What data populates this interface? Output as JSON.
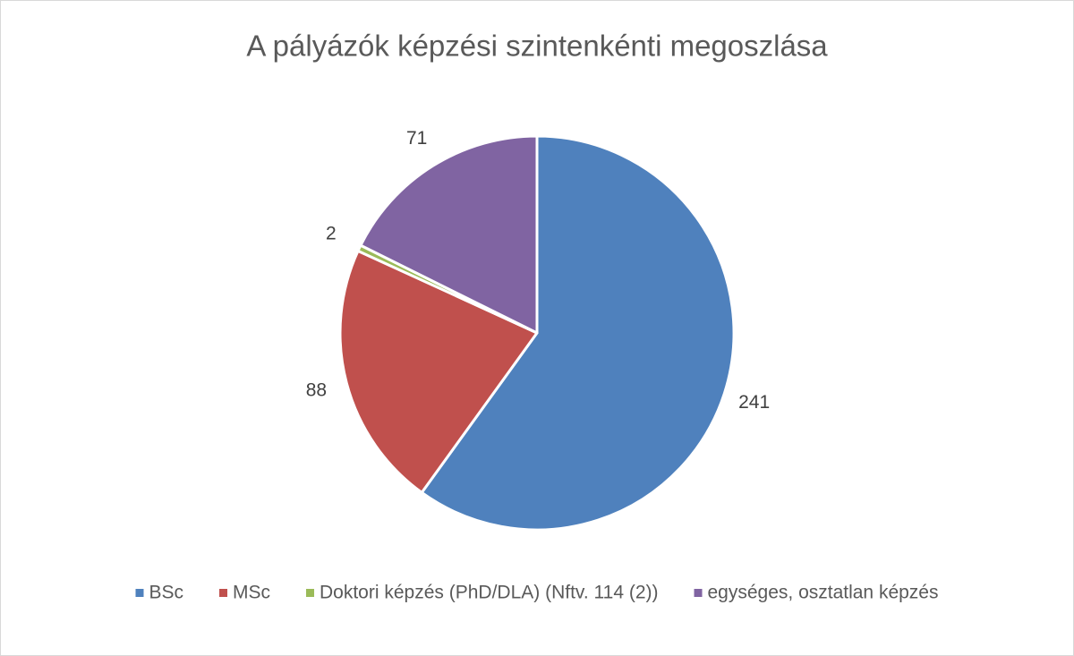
{
  "chart_data": {
    "type": "pie",
    "title": "A pályázók képzési szintenkénti megoszlása",
    "categories": [
      "BSc",
      "MSc",
      "Doktori képzés (PhD/DLA) (Nftv. 114 (2))",
      "egységes, osztatlan képzés"
    ],
    "values": [
      241,
      88,
      2,
      71
    ],
    "colors": [
      "#4f81bd",
      "#c0504d",
      "#9bbb59",
      "#8064a2"
    ],
    "legend": "bottom"
  }
}
